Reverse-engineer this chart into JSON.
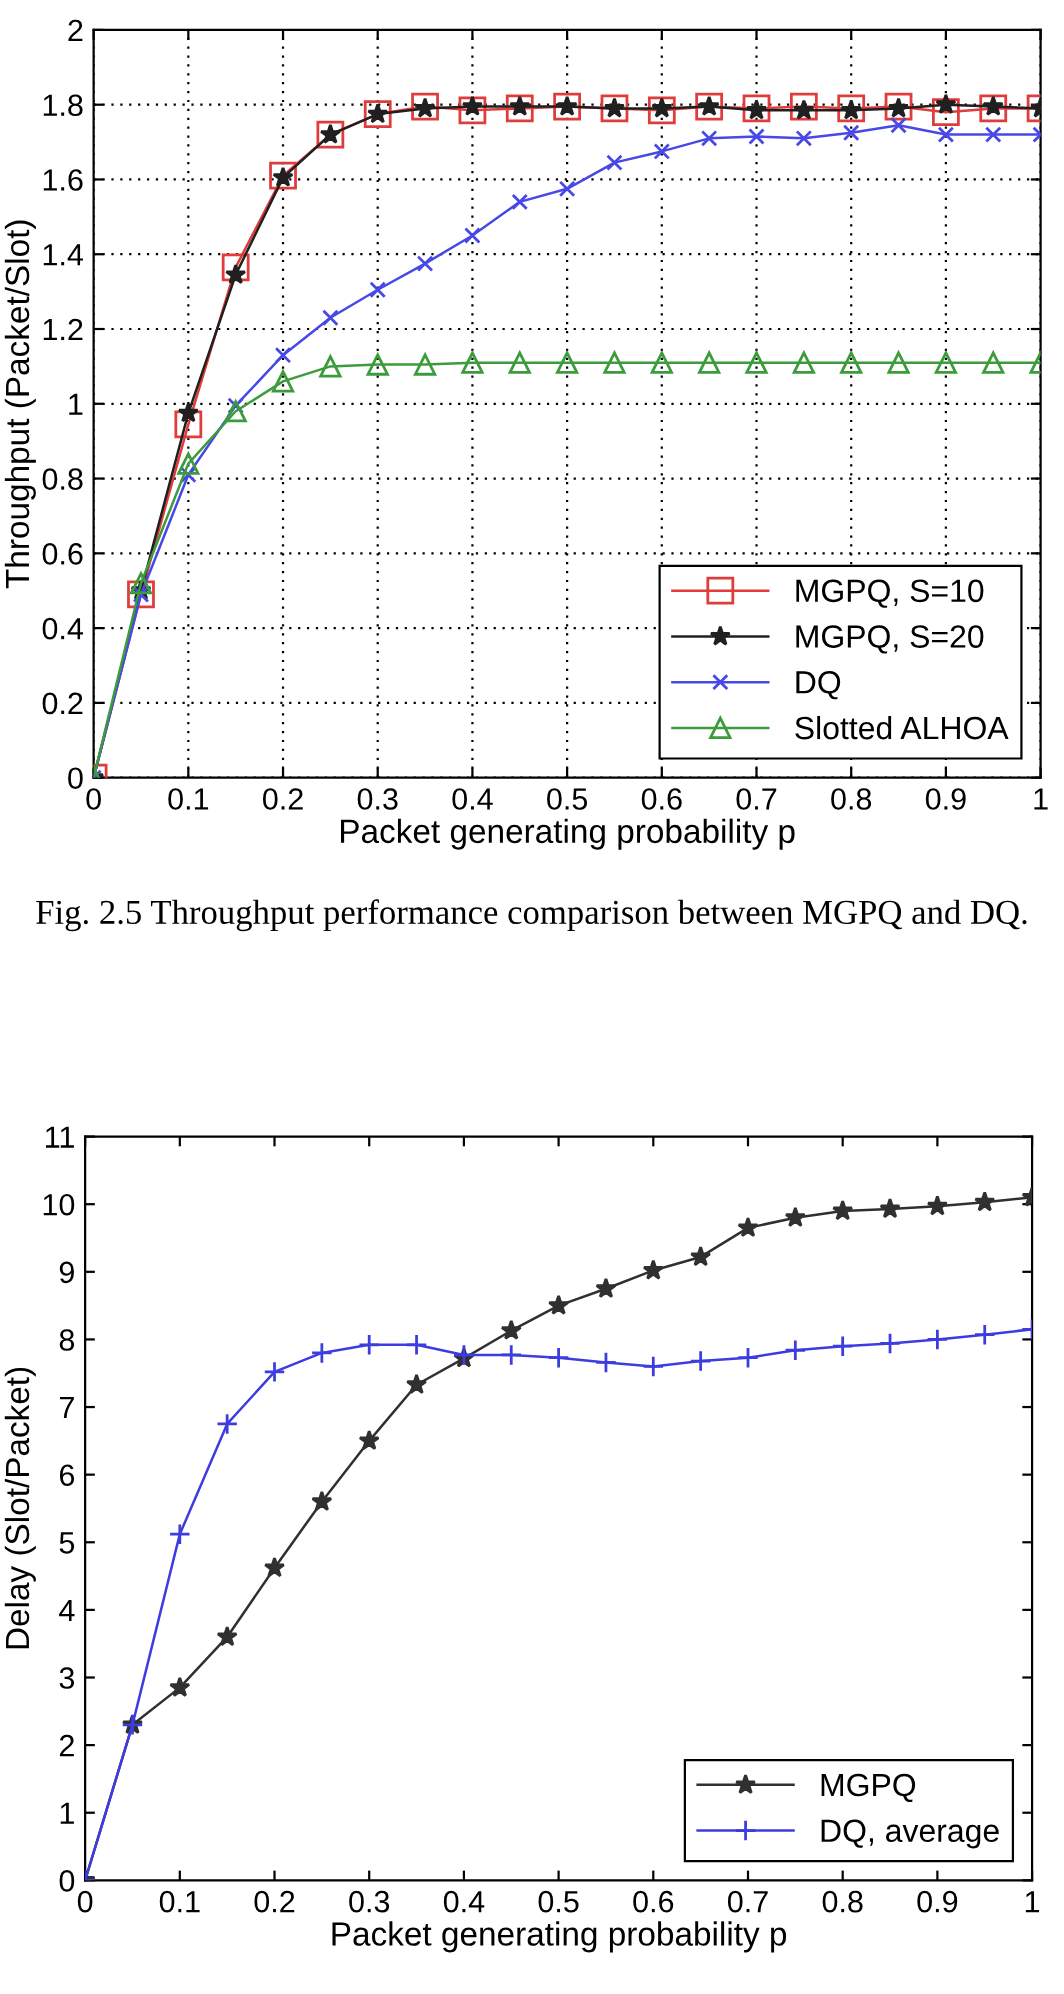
{
  "chart_data": [
    {
      "type": "line",
      "xlabel": "Packet generating probability p",
      "ylabel": "Throughput (Packet/Slot)",
      "x": [
        0,
        0.05,
        0.1,
        0.15,
        0.2,
        0.25,
        0.3,
        0.35,
        0.4,
        0.45,
        0.5,
        0.55,
        0.6,
        0.65,
        0.7,
        0.75,
        0.8,
        0.85,
        0.9,
        0.95,
        1
      ],
      "xlim": [
        0,
        1
      ],
      "xticks": [
        0,
        0.1,
        0.2,
        0.3,
        0.4,
        0.5,
        0.6,
        0.7,
        0.8,
        0.9,
        1
      ],
      "ylim": [
        0,
        2
      ],
      "yticks": [
        0,
        0.2,
        0.4,
        0.6,
        0.8,
        1,
        1.2,
        1.4,
        1.6,
        1.8,
        2
      ],
      "grid": true,
      "legend": "bottom right",
      "line_style": "solid",
      "annotations": [
        "Fig. 2.5 Throughput performance comparison between MGPQ and DQ."
      ],
      "series": [
        {
          "name": "MGPQ, S=10",
          "color": "#e03c3c",
          "marker": "square",
          "values": [
            0,
            0.49,
            0.945,
            1.365,
            1.61,
            1.72,
            1.775,
            1.795,
            1.785,
            1.79,
            1.795,
            1.79,
            1.785,
            1.795,
            1.79,
            1.795,
            1.79,
            1.795,
            1.78,
            1.79,
            1.79
          ]
        },
        {
          "name": "MGPQ, S=20",
          "color": "#202020",
          "marker": "star",
          "values": [
            0,
            0.5,
            0.975,
            1.345,
            1.605,
            1.72,
            1.775,
            1.79,
            1.795,
            1.795,
            1.795,
            1.79,
            1.79,
            1.795,
            1.785,
            1.785,
            1.785,
            1.79,
            1.8,
            1.795,
            1.79
          ]
        },
        {
          "name": "DQ",
          "color": "#4848e8",
          "marker": "cross",
          "values": [
            0,
            0.49,
            0.81,
            0.995,
            1.13,
            1.23,
            1.305,
            1.375,
            1.45,
            1.54,
            1.575,
            1.645,
            1.675,
            1.71,
            1.715,
            1.71,
            1.725,
            1.745,
            1.72,
            1.72,
            1.72
          ]
        },
        {
          "name": "Slotted ALHOA",
          "color": "#3c9c3c",
          "marker": "triangle",
          "values": [
            0,
            0.52,
            0.84,
            0.98,
            1.06,
            1.1,
            1.105,
            1.105,
            1.11,
            1.11,
            1.11,
            1.11,
            1.11,
            1.11,
            1.11,
            1.11,
            1.11,
            1.11,
            1.11,
            1.11,
            1.11
          ]
        }
      ]
    },
    {
      "type": "line",
      "xlabel": "Packet generating probability p",
      "ylabel": "Delay (Slot/Packet)",
      "x": [
        0,
        0.05,
        0.1,
        0.15,
        0.2,
        0.25,
        0.3,
        0.35,
        0.4,
        0.45,
        0.5,
        0.55,
        0.6,
        0.65,
        0.7,
        0.75,
        0.8,
        0.85,
        0.9,
        0.95,
        1
      ],
      "xlim": [
        0,
        1
      ],
      "xticks": [
        0,
        0.1,
        0.2,
        0.3,
        0.4,
        0.5,
        0.6,
        0.7,
        0.8,
        0.9,
        1
      ],
      "ylim": [
        0,
        11
      ],
      "yticks": [
        0,
        1,
        2,
        3,
        4,
        5,
        6,
        7,
        8,
        9,
        10,
        11
      ],
      "grid": false,
      "legend": "bottom right",
      "line_style": "solid",
      "series": [
        {
          "name": "MGPQ",
          "color": "#303030",
          "marker": "star",
          "values": [
            0,
            2.3,
            2.85,
            3.6,
            4.62,
            5.6,
            6.5,
            7.33,
            7.72,
            8.13,
            8.5,
            8.75,
            9.02,
            9.22,
            9.65,
            9.8,
            9.9,
            9.93,
            9.97,
            10.03,
            10.1
          ]
        },
        {
          "name": "DQ, average",
          "color": "#3c3ce0",
          "marker": "plus",
          "values": [
            0,
            2.3,
            5.12,
            6.75,
            7.52,
            7.8,
            7.92,
            7.92,
            7.77,
            7.77,
            7.73,
            7.66,
            7.6,
            7.68,
            7.73,
            7.84,
            7.9,
            7.94,
            8.0,
            8.07,
            8.15
          ]
        }
      ]
    }
  ]
}
